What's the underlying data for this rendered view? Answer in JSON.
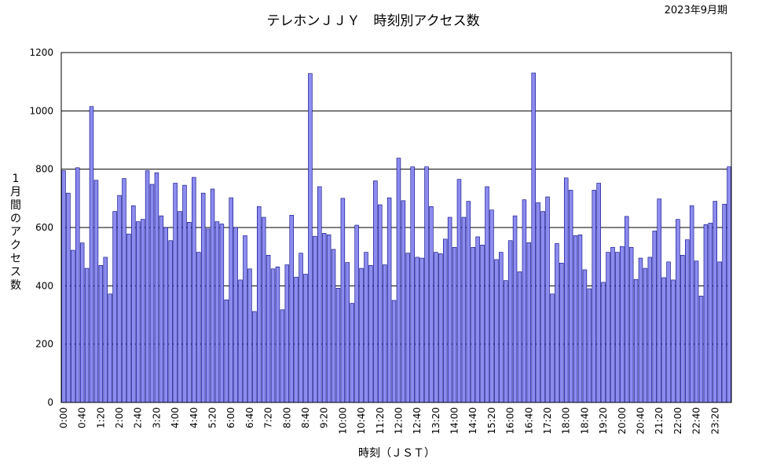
{
  "chart_data": {
    "type": "bar",
    "title": "テレホンＪＪＹ　時刻別アクセス数",
    "period_label": "2023年9月期",
    "xlabel": "時刻（ＪＳＴ）",
    "ylabel": "1月間のアクセス数",
    "ylim": [
      0,
      1200
    ],
    "yticks": [
      0,
      200,
      400,
      600,
      800,
      1000,
      1200
    ],
    "grid": "horizontal",
    "bar_color": "#8c8cf0",
    "bar_edge_color": "#000080",
    "x_interval_minutes": 10,
    "tick_labels": [
      "0:00",
      "0:40",
      "1:20",
      "2:00",
      "2:40",
      "3:20",
      "4:00",
      "4:40",
      "5:20",
      "6:00",
      "6:40",
      "7:20",
      "8:00",
      "8:40",
      "9:20",
      "10:00",
      "10:40",
      "11:20",
      "12:00",
      "12:40",
      "13:20",
      "14:00",
      "14:40",
      "15:20",
      "16:00",
      "16:40",
      "17:20",
      "18:00",
      "18:40",
      "19:20",
      "20:00",
      "20:40",
      "21:20",
      "22:00",
      "22:40",
      "23:20"
    ],
    "values": [
      795,
      718,
      522,
      805,
      547,
      460,
      1015,
      762,
      470,
      498,
      372,
      655,
      710,
      768,
      578,
      675,
      620,
      628,
      795,
      748,
      788,
      640,
      600,
      555,
      752,
      655,
      745,
      618,
      772,
      515,
      718,
      595,
      732,
      620,
      612,
      352,
      702,
      600,
      420,
      572,
      458,
      312,
      672,
      635,
      505,
      458,
      465,
      318,
      472,
      642,
      430,
      512,
      440,
      1128,
      570,
      740,
      580,
      575,
      525,
      392,
      700,
      480,
      340,
      608,
      460,
      515,
      470,
      760,
      678,
      472,
      702,
      350,
      838,
      692,
      512,
      808,
      498,
      495,
      808,
      672,
      515,
      510,
      560,
      635,
      532,
      765,
      635,
      690,
      532,
      568,
      540,
      740,
      660,
      490,
      515,
      418,
      555,
      640,
      448,
      695,
      548,
      1130,
      685,
      655,
      705,
      372,
      545,
      478,
      770,
      728,
      572,
      575,
      455,
      390,
      728,
      752,
      412,
      515,
      532,
      515,
      535,
      638,
      532,
      422,
      495,
      460,
      498,
      588,
      698,
      428,
      482,
      420,
      628,
      505,
      558,
      675,
      485,
      365,
      610,
      615,
      690,
      482,
      680,
      808
    ]
  }
}
